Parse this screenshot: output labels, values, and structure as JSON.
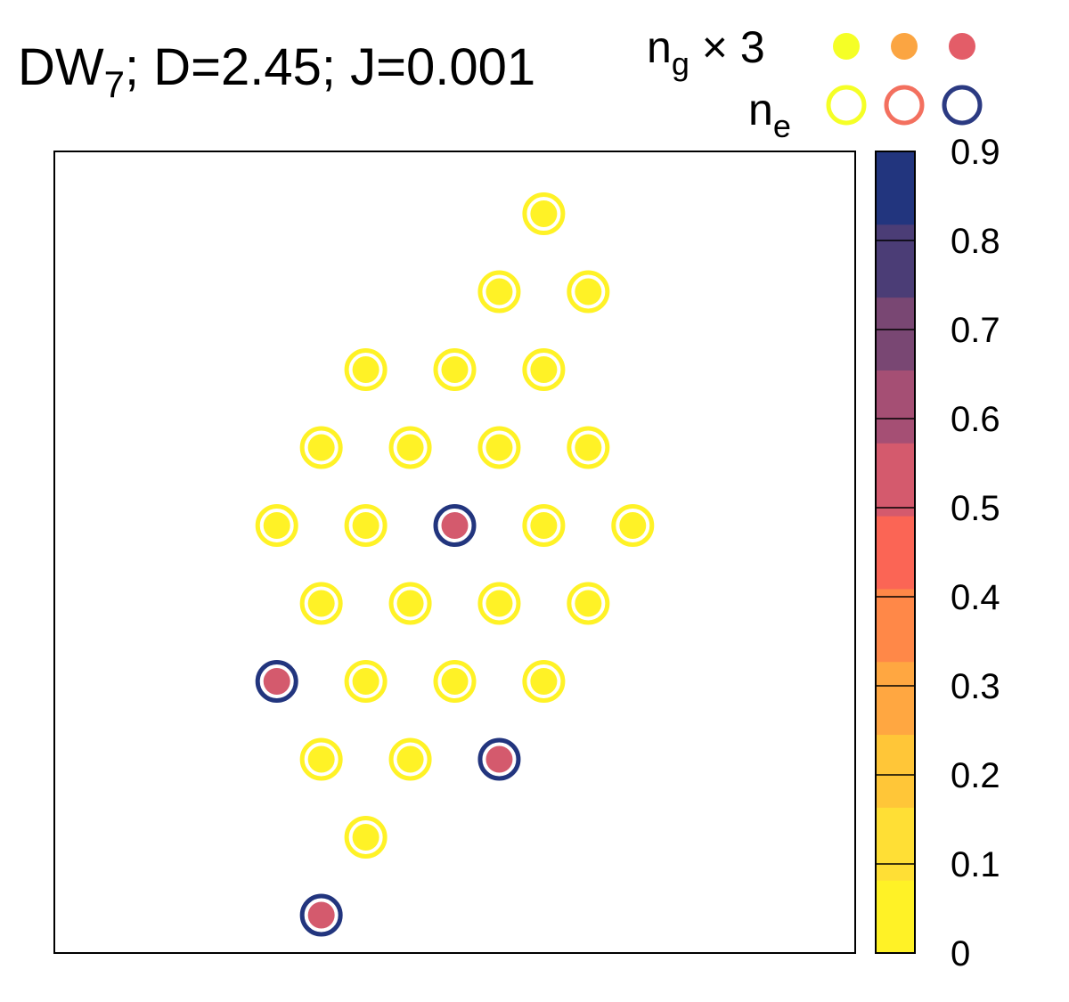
{
  "title": {
    "prefix": "DW",
    "subscript": "7",
    "rest": "; D=2.45; J=0.001"
  },
  "legend": {
    "ground": {
      "base": "n",
      "sub": "g",
      "suffix": " × 3"
    },
    "excited": {
      "base": "n",
      "sub": "e"
    },
    "filled_colors": [
      "#f5ff26",
      "#fba542",
      "#e35d68"
    ],
    "ring_colors": [
      "#f5ff26",
      "#f3705f",
      "#2b3a82"
    ]
  },
  "chart_data": {
    "type": "scatter",
    "description_of_encoding": "",
    "colorbar": {
      "range": [
        0,
        0.9
      ],
      "ticks": [
        "0",
        "0.1",
        "0.2",
        "0.3",
        "0.4",
        "0.5",
        "0.6",
        "0.7",
        "0.8",
        "0.9"
      ],
      "bands": [
        "#fff226",
        "#ffdf35",
        "#ffc638",
        "#ffa741",
        "#ff8848",
        "#fb6555",
        "#d45a6d",
        "#a54f74",
        "#794773",
        "#4b3d76",
        "#22357e"
      ]
    },
    "xlim": [
      0,
      18
    ],
    "ylim": [
      0,
      18
    ],
    "sites": [
      {
        "x": 11,
        "y": 16.6,
        "ng": 0.0,
        "ne": 0.0
      },
      {
        "x": 10,
        "y": 14.85,
        "ng": 0.0,
        "ne": 0.0
      },
      {
        "x": 12,
        "y": 14.85,
        "ng": 0.0,
        "ne": 0.0
      },
      {
        "x": 7,
        "y": 13.1,
        "ng": 0.0,
        "ne": 0.0
      },
      {
        "x": 9,
        "y": 13.1,
        "ng": 0.0,
        "ne": 0.0
      },
      {
        "x": 11,
        "y": 13.1,
        "ng": 0.0,
        "ne": 0.0
      },
      {
        "x": 6,
        "y": 11.35,
        "ng": 0.0,
        "ne": 0.0
      },
      {
        "x": 8,
        "y": 11.35,
        "ng": 0.0,
        "ne": 0.0
      },
      {
        "x": 10,
        "y": 11.35,
        "ng": 0.0,
        "ne": 0.0
      },
      {
        "x": 12,
        "y": 11.35,
        "ng": 0.0,
        "ne": 0.0
      },
      {
        "x": 5,
        "y": 9.6,
        "ng": 0.0,
        "ne": 0.0
      },
      {
        "x": 7,
        "y": 9.6,
        "ng": 0.0,
        "ne": 0.0
      },
      {
        "x": 9,
        "y": 9.6,
        "ng": 0.5,
        "ne": 0.85
      },
      {
        "x": 11,
        "y": 9.6,
        "ng": 0.0,
        "ne": 0.0
      },
      {
        "x": 13,
        "y": 9.6,
        "ng": 0.0,
        "ne": 0.0
      },
      {
        "x": 6,
        "y": 7.85,
        "ng": 0.0,
        "ne": 0.0
      },
      {
        "x": 8,
        "y": 7.85,
        "ng": 0.0,
        "ne": 0.0
      },
      {
        "x": 10,
        "y": 7.85,
        "ng": 0.0,
        "ne": 0.0
      },
      {
        "x": 12,
        "y": 7.85,
        "ng": 0.0,
        "ne": 0.0
      },
      {
        "x": 5,
        "y": 6.1,
        "ng": 0.5,
        "ne": 0.85
      },
      {
        "x": 7,
        "y": 6.1,
        "ng": 0.0,
        "ne": 0.0
      },
      {
        "x": 9,
        "y": 6.1,
        "ng": 0.0,
        "ne": 0.0
      },
      {
        "x": 11,
        "y": 6.1,
        "ng": 0.0,
        "ne": 0.0
      },
      {
        "x": 6,
        "y": 4.35,
        "ng": 0.0,
        "ne": 0.0
      },
      {
        "x": 8,
        "y": 4.35,
        "ng": 0.0,
        "ne": 0.0
      },
      {
        "x": 10,
        "y": 4.35,
        "ng": 0.5,
        "ne": 0.85
      },
      {
        "x": 7,
        "y": 2.6,
        "ng": 0.0,
        "ne": 0.0
      },
      {
        "x": 6,
        "y": 0.85,
        "ng": 0.5,
        "ne": 0.85
      }
    ]
  }
}
